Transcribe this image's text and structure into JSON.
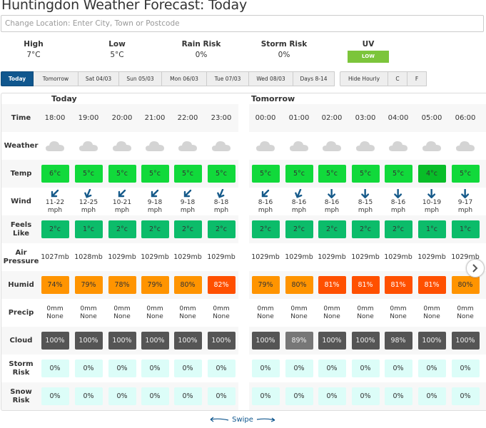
{
  "title": "Huntingdon Weather Forecast: Today",
  "search": {
    "placeholder": "Change Location: Enter City, Town or Postcode",
    "value": ""
  },
  "summary": {
    "high": {
      "label": "High",
      "value": "7°C"
    },
    "low": {
      "label": "Low",
      "value": "5°C"
    },
    "rain": {
      "label": "Rain Risk",
      "value": "0%"
    },
    "storm": {
      "label": "Storm Risk",
      "value": "0%"
    },
    "uv": {
      "label": "UV",
      "value": "LOW",
      "color": "#7cc53b"
    }
  },
  "tabs": [
    "Today",
    "Tomorrow",
    "Sat 04/03",
    "Sun 05/03",
    "Mon 06/03",
    "Tue 07/03",
    "Wed 08/03",
    "Days 8-14"
  ],
  "active_tab": "Today",
  "options": [
    "Hide Hourly",
    "C",
    "F"
  ],
  "groups": [
    {
      "label": "Today"
    },
    {
      "label": "Tomorrow"
    }
  ],
  "row_labels": {
    "time": "Time",
    "weather": "Weather",
    "temp": "Temp",
    "wind": "Wind",
    "feels": "Feels Like",
    "pressure": "Air Pressure",
    "humid": "Humid",
    "precip": "Precip",
    "cloud": "Cloud",
    "storm": "Storm Risk",
    "snow": "Snow Risk"
  },
  "hours": [
    {
      "time": "18:00",
      "weather": "cloud-icon",
      "temp": "6°c",
      "temp_color": "#11d93b",
      "wind_dir": "sw",
      "wind": "11-22",
      "wind_unit": "mph",
      "feels": "2°c",
      "feels_color": "#0cbc6a",
      "pressure": "1027mb",
      "humid": "74%",
      "humid_color": "#ff9400",
      "precip": "0mm",
      "precip_type": "None",
      "cloud": "100%",
      "cloud_color": "#555555",
      "storm": "0%",
      "snow": "0%"
    },
    {
      "time": "19:00",
      "weather": "cloud-icon",
      "temp": "5°c",
      "temp_color": "#11d93b",
      "wind_dir": "ssw",
      "wind": "12-25",
      "wind_unit": "mph",
      "feels": "1°c",
      "feels_color": "#0cbc6a",
      "pressure": "1028mb",
      "humid": "79%",
      "humid_color": "#ff9400",
      "precip": "0mm",
      "precip_type": "None",
      "cloud": "100%",
      "cloud_color": "#555555",
      "storm": "0%",
      "snow": "0%"
    },
    {
      "time": "20:00",
      "weather": "cloud-icon",
      "temp": "5°c",
      "temp_color": "#11d93b",
      "wind_dir": "sw",
      "wind": "10-21",
      "wind_unit": "mph",
      "feels": "2°c",
      "feels_color": "#0cbc6a",
      "pressure": "1029mb",
      "humid": "78%",
      "humid_color": "#ff9400",
      "precip": "0mm",
      "precip_type": "None",
      "cloud": "100%",
      "cloud_color": "#555555",
      "storm": "0%",
      "snow": "0%"
    },
    {
      "time": "21:00",
      "weather": "cloud-icon",
      "temp": "5°c",
      "temp_color": "#11d93b",
      "wind_dir": "sw",
      "wind": "9-18",
      "wind_unit": "mph",
      "feels": "2°c",
      "feels_color": "#0cbc6a",
      "pressure": "1029mb",
      "humid": "79%",
      "humid_color": "#ff9400",
      "precip": "0mm",
      "precip_type": "None",
      "cloud": "100%",
      "cloud_color": "#555555",
      "storm": "0%",
      "snow": "0%"
    },
    {
      "time": "22:00",
      "weather": "cloud-icon",
      "temp": "5°c",
      "temp_color": "#11d93b",
      "wind_dir": "sw",
      "wind": "9-18",
      "wind_unit": "mph",
      "feels": "2°c",
      "feels_color": "#0cbc6a",
      "pressure": "1029mb",
      "humid": "80%",
      "humid_color": "#ff9400",
      "precip": "0mm",
      "precip_type": "None",
      "cloud": "100%",
      "cloud_color": "#555555",
      "storm": "0%",
      "snow": "0%"
    },
    {
      "time": "23:00",
      "weather": "cloud-icon",
      "temp": "5°c",
      "temp_color": "#11d93b",
      "wind_dir": "ssw",
      "wind": "8-18",
      "wind_unit": "mph",
      "feels": "2°c",
      "feels_color": "#0cbc6a",
      "pressure": "1029mb",
      "humid": "82%",
      "humid_color": "#ff5000",
      "precip": "0mm",
      "precip_type": "None",
      "cloud": "100%",
      "cloud_color": "#555555",
      "storm": "0%",
      "snow": "0%"
    },
    {
      "time": "00:00",
      "weather": "cloud-icon",
      "temp": "5°c",
      "temp_color": "#11d93b",
      "wind_dir": "sw",
      "wind": "8-16",
      "wind_unit": "mph",
      "feels": "2°c",
      "feels_color": "#0cbc6a",
      "pressure": "1029mb",
      "humid": "79%",
      "humid_color": "#ff9400",
      "precip": "0mm",
      "precip_type": "None",
      "cloud": "100%",
      "cloud_color": "#555555",
      "storm": "0%",
      "snow": "0%"
    },
    {
      "time": "01:00",
      "weather": "cloud-icon",
      "temp": "5°c",
      "temp_color": "#11d93b",
      "wind_dir": "ssw",
      "wind": "8-16",
      "wind_unit": "mph",
      "feels": "2°c",
      "feels_color": "#0cbc6a",
      "pressure": "1029mb",
      "humid": "80%",
      "humid_color": "#ff9400",
      "precip": "0mm",
      "precip_type": "None",
      "cloud": "89%",
      "cloud_color": "#777777",
      "storm": "0%",
      "snow": "0%"
    },
    {
      "time": "02:00",
      "weather": "cloud-icon",
      "temp": "5°c",
      "temp_color": "#11d93b",
      "wind_dir": "s",
      "wind": "8-16",
      "wind_unit": "mph",
      "feels": "2°c",
      "feels_color": "#0cbc6a",
      "pressure": "1029mb",
      "humid": "81%",
      "humid_color": "#ff5000",
      "precip": "0mm",
      "precip_type": "None",
      "cloud": "100%",
      "cloud_color": "#555555",
      "storm": "0%",
      "snow": "0%"
    },
    {
      "time": "03:00",
      "weather": "cloud-icon",
      "temp": "5°c",
      "temp_color": "#11d93b",
      "wind_dir": "s",
      "wind": "8-15",
      "wind_unit": "mph",
      "feels": "2°c",
      "feels_color": "#0cbc6a",
      "pressure": "1029mb",
      "humid": "81%",
      "humid_color": "#ff5000",
      "precip": "0mm",
      "precip_type": "None",
      "cloud": "100%",
      "cloud_color": "#555555",
      "storm": "0%",
      "snow": "0%"
    },
    {
      "time": "04:00",
      "weather": "cloud-icon",
      "temp": "5°c",
      "temp_color": "#11d93b",
      "wind_dir": "s",
      "wind": "8-16",
      "wind_unit": "mph",
      "feels": "2°c",
      "feels_color": "#0cbc6a",
      "pressure": "1029mb",
      "humid": "81%",
      "humid_color": "#ff5000",
      "precip": "0mm",
      "precip_type": "None",
      "cloud": "98%",
      "cloud_color": "#555555",
      "storm": "0%",
      "snow": "0%"
    },
    {
      "time": "05:00",
      "weather": "cloud-icon",
      "temp": "4°c",
      "temp_color": "#08bd28",
      "wind_dir": "s",
      "wind": "10-19",
      "wind_unit": "mph",
      "feels": "1°c",
      "feels_color": "#0cbc6a",
      "pressure": "1029mb",
      "humid": "81%",
      "humid_color": "#ff5000",
      "precip": "0mm",
      "precip_type": "None",
      "cloud": "100%",
      "cloud_color": "#555555",
      "storm": "0%",
      "snow": "0%"
    },
    {
      "time": "06:00",
      "weather": "cloud-icon",
      "temp": "5°c",
      "temp_color": "#11d93b",
      "wind_dir": "s",
      "wind": "9-17",
      "wind_unit": "mph",
      "feels": "1°c",
      "feels_color": "#0cbc6a",
      "pressure": "1029mb",
      "humid": "80%",
      "humid_color": "#ff9400",
      "precip": "0mm",
      "precip_type": "None",
      "cloud": "100%",
      "cloud_color": "#555555",
      "storm": "0%",
      "snow": "0%"
    }
  ],
  "risk_color": "#dcfdf8",
  "swipe_label": "Swipe",
  "next_icon": "chevron-right-icon"
}
